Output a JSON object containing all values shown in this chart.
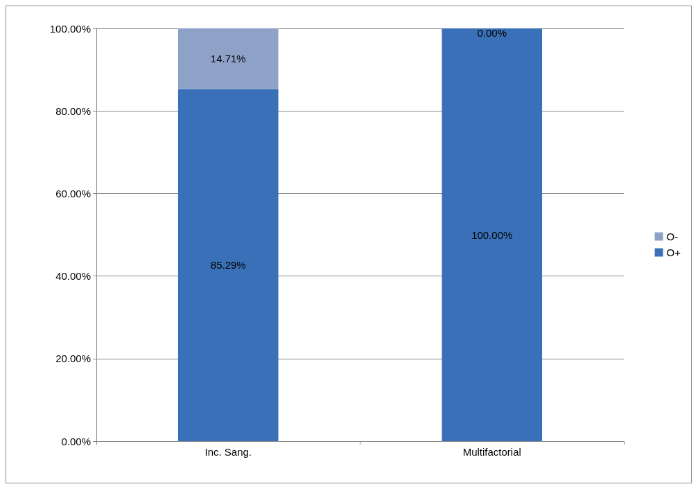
{
  "chart_data": {
    "type": "bar",
    "stacked": true,
    "categories": [
      "Inc. Sang.",
      "Multifactorial"
    ],
    "series": [
      {
        "name": "O+",
        "color": "#3a70b8",
        "values": [
          85.29,
          100
        ],
        "value_labels": [
          "85.29%",
          "100.00%"
        ]
      },
      {
        "name": "O-",
        "color": "#8ea2c8",
        "values": [
          14.71,
          0
        ],
        "value_labels": [
          "14.71%",
          "0.00%"
        ]
      }
    ],
    "ylim": [
      0,
      100
    ],
    "yticks": [
      {
        "value": 0,
        "label": "0.00%"
      },
      {
        "value": 20,
        "label": "20.00%"
      },
      {
        "value": 40,
        "label": "40.00%"
      },
      {
        "value": 60,
        "label": "60.00%"
      },
      {
        "value": 80,
        "label": "80.00%"
      },
      {
        "value": 100,
        "label": "100.00%"
      }
    ],
    "grid": "y",
    "legend": "right"
  }
}
